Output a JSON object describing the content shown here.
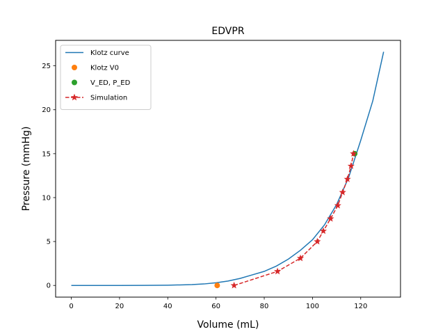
{
  "chart_data": {
    "type": "line",
    "title": "EDVPR",
    "xlabel": "Volume (mL)",
    "ylabel": "Pressure (mmHg)",
    "xlim": [
      -6.5,
      136.5
    ],
    "ylim": [
      -1.33,
      27.9
    ],
    "xticks": [
      0,
      20,
      40,
      60,
      80,
      100,
      120
    ],
    "yticks": [
      0,
      5,
      10,
      15,
      20,
      25
    ],
    "grid": false,
    "legend_position": "top-left",
    "series": [
      {
        "name": "Klotz curve",
        "kind": "line",
        "color": "#1f77b4",
        "x": [
          0,
          10,
          20,
          30,
          40,
          45,
          50,
          55,
          60,
          65,
          70,
          75,
          80,
          85,
          90,
          95,
          100,
          105,
          110,
          115,
          120,
          125,
          129.5
        ],
        "y": [
          0,
          0,
          0,
          0.01,
          0.03,
          0.06,
          0.1,
          0.17,
          0.3,
          0.5,
          0.8,
          1.2,
          1.6,
          2.2,
          3.0,
          4.0,
          5.2,
          6.9,
          9.2,
          12.3,
          16.5,
          21.0,
          26.6
        ]
      },
      {
        "name": "Klotz V0",
        "kind": "marker",
        "color": "#ff7f0e",
        "x": [
          60.5
        ],
        "y": [
          0
        ]
      },
      {
        "name": "V_ED, P_ED",
        "kind": "marker",
        "color": "#2ca02c",
        "x": [
          117.5
        ],
        "y": [
          15
        ]
      },
      {
        "name": "Simulation",
        "kind": "dashed-star",
        "color": "#d62728",
        "x": [
          67.5,
          85.5,
          95,
          102,
          104.5,
          107.5,
          110.5,
          112.5,
          114.5,
          116,
          117
        ],
        "y": [
          0,
          1.6,
          3.1,
          5.0,
          6.2,
          7.6,
          9.1,
          10.6,
          12.1,
          13.6,
          15.0
        ]
      }
    ]
  }
}
